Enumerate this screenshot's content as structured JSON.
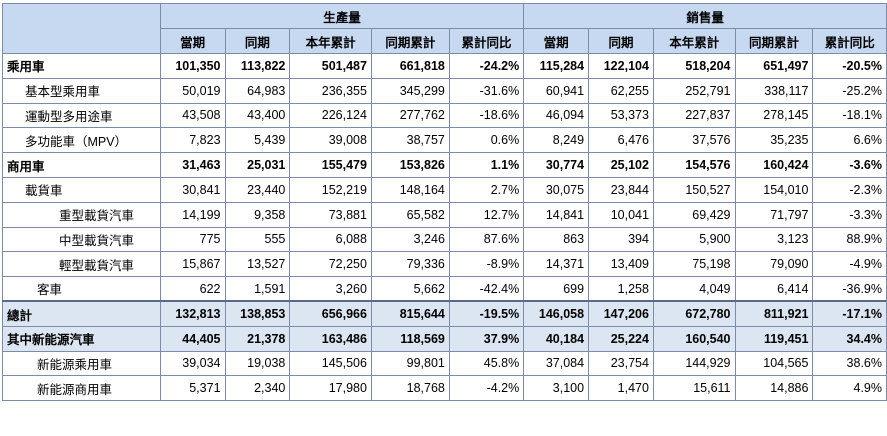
{
  "header": {
    "production": "生產量",
    "sales": "銷售量",
    "columns": [
      "當期",
      "同期",
      "本年累計",
      "同期累計",
      "累計同比",
      "當期",
      "同期",
      "本年累計",
      "同期累計",
      "累計同比"
    ]
  },
  "rows": [
    {
      "label": "乘用車",
      "style": "bold",
      "values": [
        "101,350",
        "113,822",
        "501,487",
        "661,818",
        "-24.2%",
        "115,284",
        "122,104",
        "518,204",
        "651,497",
        "-20.5%"
      ]
    },
    {
      "label": "基本型乘用車",
      "style": "ind1",
      "values": [
        "50,019",
        "64,983",
        "236,355",
        "345,299",
        "-31.6%",
        "60,941",
        "62,255",
        "252,791",
        "338,117",
        "-25.2%"
      ]
    },
    {
      "label": "運動型多用途車",
      "style": "ind1",
      "values": [
        "43,508",
        "43,400",
        "226,124",
        "277,762",
        "-18.6%",
        "46,094",
        "53,373",
        "227,837",
        "278,145",
        "-18.1%"
      ]
    },
    {
      "label": "多功能車（MPV）",
      "style": "ind1",
      "values": [
        "7,823",
        "5,439",
        "39,008",
        "38,757",
        "0.6%",
        "8,249",
        "6,476",
        "37,576",
        "35,235",
        "6.6%"
      ]
    },
    {
      "label": "商用車",
      "style": "bold",
      "values": [
        "31,463",
        "25,031",
        "155,479",
        "153,826",
        "1.1%",
        "30,774",
        "25,102",
        "154,576",
        "160,424",
        "-3.6%"
      ]
    },
    {
      "label": "載貨車",
      "style": "ind1",
      "values": [
        "30,841",
        "23,440",
        "152,219",
        "148,164",
        "2.7%",
        "30,075",
        "23,844",
        "150,527",
        "154,010",
        "-2.3%"
      ]
    },
    {
      "label": "重型載貨汽車",
      "style": "ind2",
      "values": [
        "14,199",
        "9,358",
        "73,881",
        "65,582",
        "12.7%",
        "14,841",
        "10,041",
        "69,429",
        "71,797",
        "-3.3%"
      ]
    },
    {
      "label": "中型載貨汽車",
      "style": "ind2",
      "values": [
        "775",
        "555",
        "6,088",
        "3,246",
        "87.6%",
        "863",
        "394",
        "5,900",
        "3,123",
        "88.9%"
      ]
    },
    {
      "label": "輕型載貨汽車",
      "style": "ind2",
      "values": [
        "15,867",
        "13,527",
        "72,250",
        "79,336",
        "-8.9%",
        "14,371",
        "13,409",
        "75,198",
        "79,090",
        "-4.9%"
      ]
    },
    {
      "label": "客車",
      "style": "ind3",
      "values": [
        "622",
        "1,591",
        "3,260",
        "5,662",
        "-42.4%",
        "699",
        "1,258",
        "4,049",
        "6,414",
        "-36.9%"
      ]
    },
    {
      "label": "總計",
      "style": "total",
      "values": [
        "132,813",
        "138,853",
        "656,966",
        "815,644",
        "-19.5%",
        "146,058",
        "147,206",
        "672,780",
        "811,921",
        "-17.1%"
      ]
    },
    {
      "label": "其中新能源汽車",
      "style": "total",
      "values": [
        "44,405",
        "21,378",
        "163,486",
        "118,569",
        "37.9%",
        "40,184",
        "25,224",
        "160,540",
        "119,451",
        "34.4%"
      ]
    },
    {
      "label": "新能源乘用車",
      "style": "ind3",
      "values": [
        "39,034",
        "19,038",
        "145,506",
        "99,801",
        "45.8%",
        "37,084",
        "23,754",
        "144,929",
        "104,565",
        "38.6%"
      ]
    },
    {
      "label": "新能源商用車",
      "style": "ind3",
      "values": [
        "5,371",
        "2,340",
        "17,980",
        "18,768",
        "-4.2%",
        "3,100",
        "1,470",
        "15,611",
        "14,886",
        "4.9%"
      ]
    }
  ]
}
